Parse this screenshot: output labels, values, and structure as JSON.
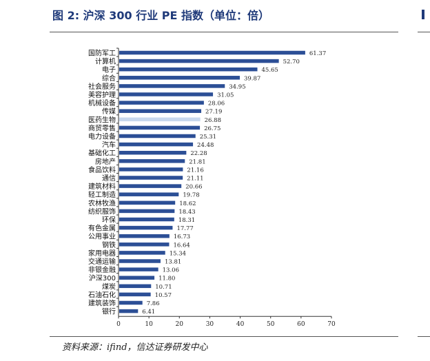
{
  "title": "图 2: 沪深 300 行业 PE 指数（单位：倍）",
  "source": "资料来源：ifind，信达证券研发中心",
  "colors": {
    "bar": "#2c4f96",
    "highlight": "#c8d8ee"
  },
  "chart_data": {
    "type": "bar",
    "orientation": "horizontal",
    "categories": [
      "国防军工",
      "计算机",
      "电子",
      "综合",
      "社会服务",
      "美容护理",
      "机械设备",
      "传媒",
      "医药生物",
      "商贸零售",
      "电力设备",
      "汽车",
      "基础化工",
      "房地产",
      "食品饮料",
      "通信",
      "建筑材料",
      "轻工制造",
      "农林牧渔",
      "纺织服饰",
      "环保",
      "有色金属",
      "公用事业",
      "钢铁",
      "家用电器",
      "交通运输",
      "非银金融",
      "沪深300",
      "煤炭",
      "石油石化",
      "建筑装饰",
      "银行"
    ],
    "values": [
      61.37,
      52.7,
      45.65,
      39.87,
      34.95,
      31.05,
      28.06,
      27.19,
      26.88,
      26.75,
      25.31,
      24.48,
      22.28,
      21.81,
      21.16,
      21.11,
      20.66,
      19.78,
      18.62,
      18.43,
      18.31,
      17.77,
      16.73,
      16.64,
      15.34,
      13.81,
      13.06,
      11.8,
      10.71,
      10.57,
      7.86,
      6.41
    ],
    "value_labels": [
      "61.37",
      "52.70",
      "45.65",
      "39.87",
      "34.95",
      "31.05",
      "28.06",
      "27.19",
      "26.88",
      "26.75",
      "25.31",
      "24.48",
      "22.28",
      "21.81",
      "21.16",
      "21.11",
      "20.66",
      "19.78",
      "18.62",
      "18.43",
      "18.31",
      "17.77",
      "16.73",
      "16.64",
      "15.34",
      "13.81",
      "13.06",
      "11.80",
      "10.71",
      "10.57",
      "7.86",
      "6.41"
    ],
    "highlight": "医药生物",
    "xlim": [
      0,
      70
    ],
    "xticks": [
      "0",
      "10",
      "20",
      "30",
      "40",
      "50",
      "60",
      "70"
    ],
    "grid": false
  }
}
